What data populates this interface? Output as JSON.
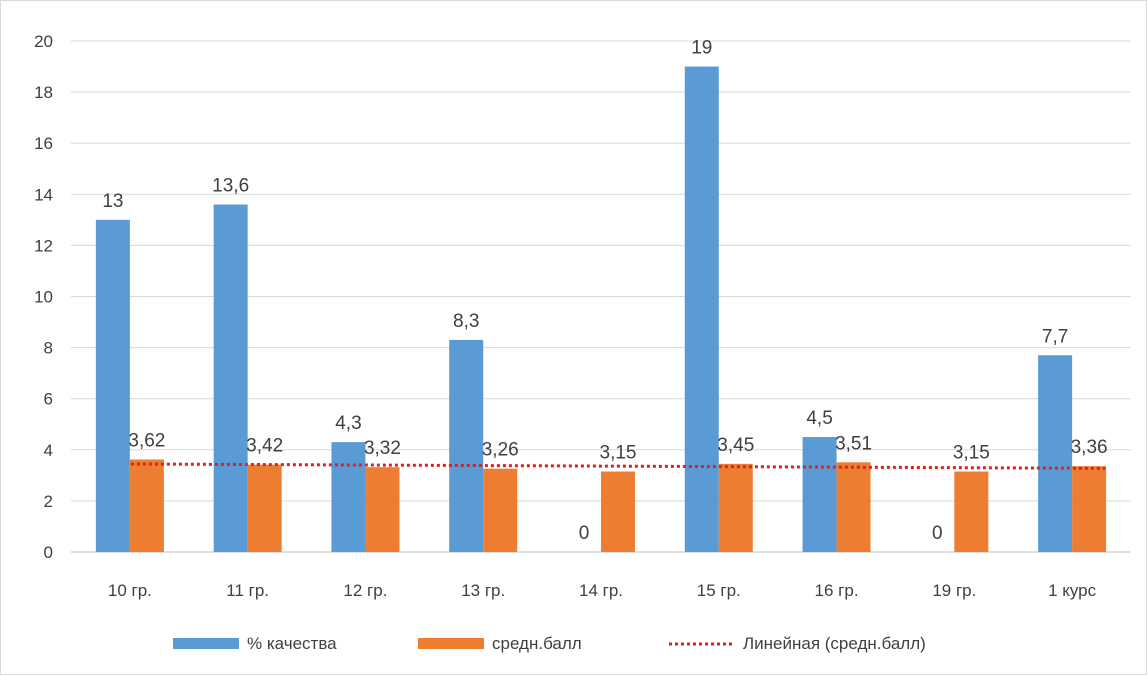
{
  "chart_data": {
    "type": "bar",
    "categories": [
      "10 гр.",
      "11 гр.",
      "12 гр.",
      "13 гр.",
      "14 гр.",
      "15 гр.",
      "16 гр.",
      "19 гр.",
      "1 курс"
    ],
    "series": [
      {
        "name": "% качества",
        "values": [
          13,
          13.6,
          4.3,
          8.3,
          0,
          19,
          4.5,
          0,
          7.7
        ],
        "labels": [
          "13",
          "13,6",
          "4,3",
          "8,3",
          "0",
          "19",
          "4,5",
          "0",
          "7,7"
        ],
        "color": "#5b9bd5"
      },
      {
        "name": "средн.балл",
        "values": [
          3.62,
          3.42,
          3.32,
          3.26,
          3.15,
          3.45,
          3.51,
          3.15,
          3.36
        ],
        "labels": [
          "3,62",
          "3,42",
          "3,32",
          "3,26",
          "3,15",
          "3,45",
          "3,51",
          "3,15",
          "3,36"
        ],
        "color": "#ed7d31"
      }
    ],
    "trendline": {
      "name": "Линейная (средн.балл)",
      "series": "средн.балл",
      "color": "#e0201b"
    },
    "ylim": [
      0,
      20
    ],
    "yticks": [
      0,
      2,
      4,
      6,
      8,
      10,
      12,
      14,
      16,
      18,
      20
    ],
    "grid": true,
    "legend": "bottom",
    "title": "",
    "xlabel": "",
    "ylabel": ""
  }
}
